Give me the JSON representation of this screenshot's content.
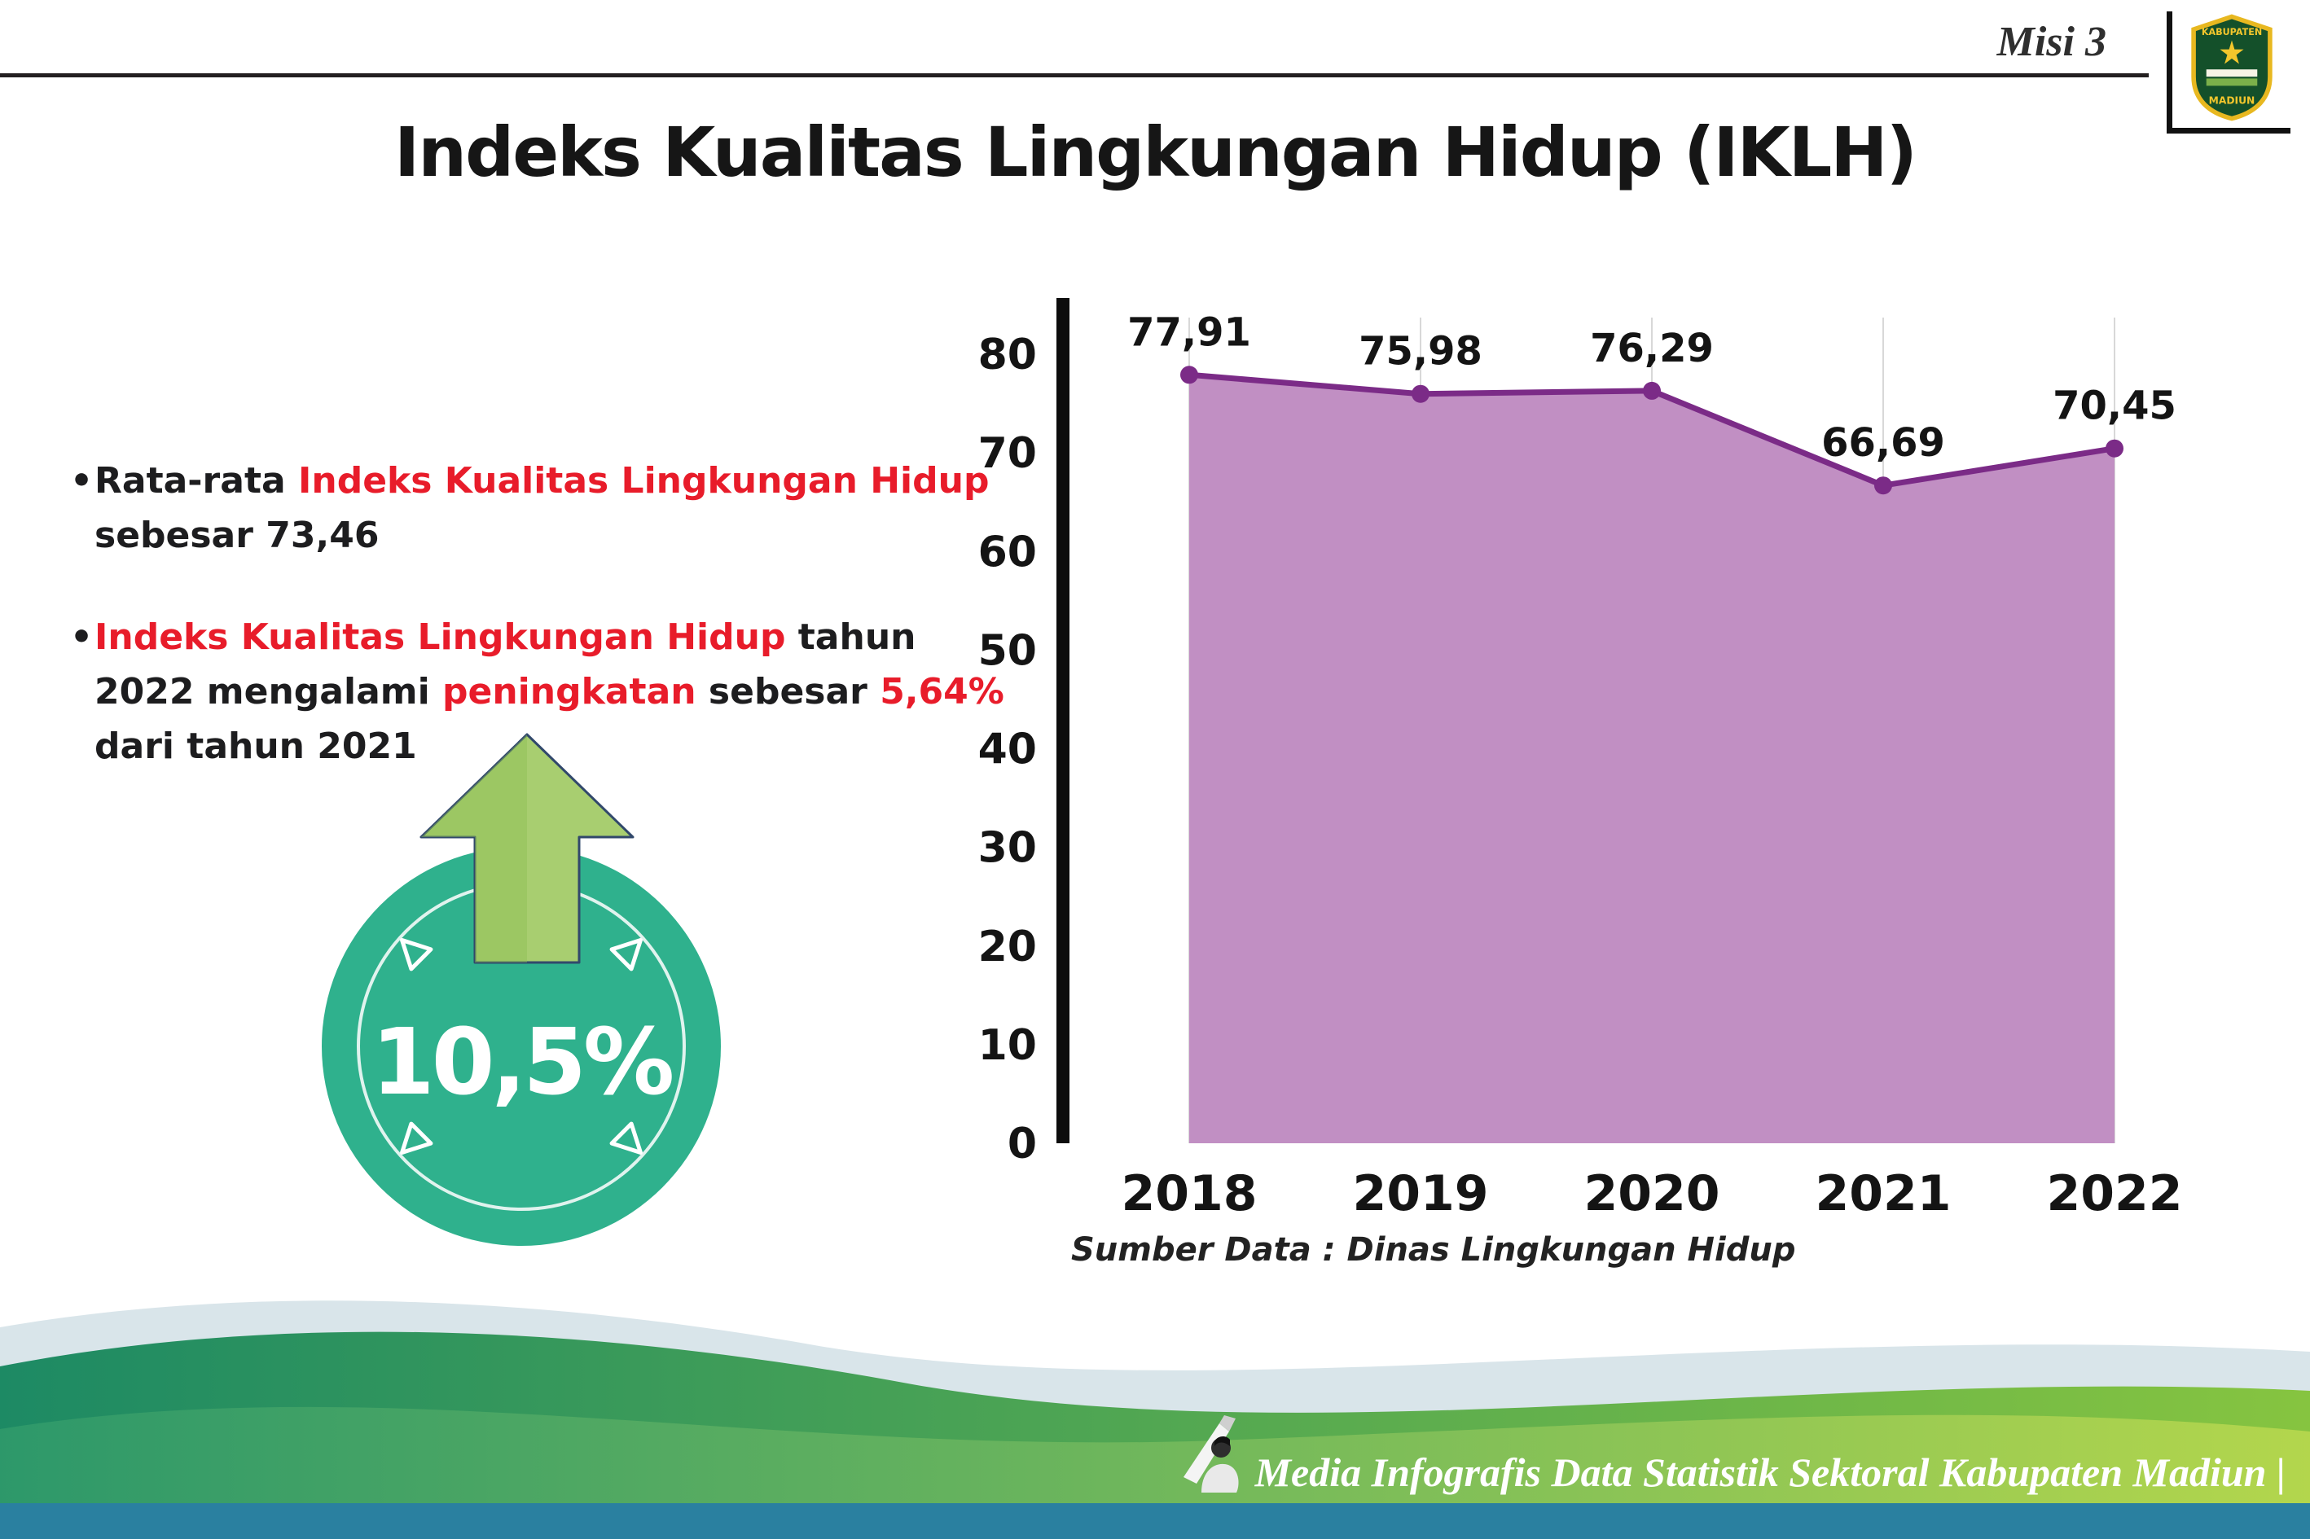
{
  "page": {
    "misi_label": "Misi 3",
    "title": "Indeks Kualitas Lingkungan Hidup (IKLH)"
  },
  "logo": {
    "top_text": "KABUPATEN",
    "bottom_text": "MADIUN"
  },
  "bullets": {
    "b1": [
      {
        "t": "Rata-rata ",
        "red": false
      },
      {
        "t": "Indeks Kualitas Lingkungan Hidup",
        "red": true
      },
      {
        "t": " sebesar 73,46",
        "red": false
      }
    ],
    "b2": [
      {
        "t": "Indeks Kualitas Lingkungan Hidup",
        "red": true
      },
      {
        "t": " tahun 2022 mengalami ",
        "red": false
      },
      {
        "t": "peningkatan",
        "red": true
      },
      {
        "t": " sebesar ",
        "red": false
      },
      {
        "t": "5,64%",
        "red": true
      },
      {
        "t": " dari tahun 2021",
        "red": false
      }
    ]
  },
  "badge": {
    "value": "10,5%"
  },
  "chart_data": {
    "type": "area",
    "categories": [
      "2018",
      "2019",
      "2020",
      "2021",
      "2022"
    ],
    "values": [
      77.91,
      75.98,
      76.29,
      66.69,
      70.45
    ],
    "point_labels": [
      "77,91",
      "75,98",
      "76,29",
      "66,69",
      "70,45"
    ],
    "title": "Indeks Kualitas Lingkungan Hidup (IKLH)",
    "xlabel": "",
    "ylabel": "",
    "ylim": [
      0,
      80
    ],
    "yticks": [
      0,
      10,
      20,
      30,
      40,
      50,
      60,
      70,
      80
    ],
    "grid": "vertical",
    "legend": "none",
    "source": "Sumber Data : Dinas Lingkungan Hidup",
    "colors": {
      "fill": "#c18fc3",
      "line": "#7b2b87",
      "point": "#7b2b87"
    }
  },
  "footer": {
    "text": "Media Infografis Data Statistik Sektoral Kabupaten Madiun |"
  },
  "colors": {
    "accent_red": "#e81c2a",
    "badge_teal": "#2fb18d",
    "arrow_green": "#a8ce70",
    "footer_strip_teal": "#2a80a0"
  }
}
